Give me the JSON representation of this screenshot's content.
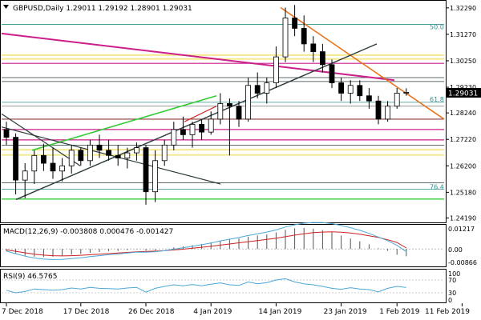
{
  "header": {
    "symbol": "GBPUSD,Daily",
    "ohlc": "1.29011 1.29192 1.28901 1.29031"
  },
  "price_panel": {
    "last_price": "1.29031",
    "fib_labels": [
      {
        "text": "50.0",
        "price": 1.314
      },
      {
        "text": "61.8",
        "price": 1.2862
      },
      {
        "text": "76.4",
        "price": 1.2523
      }
    ]
  },
  "macd_panel": {
    "label": "MACD(12,26,9) -0.003808 0.000476 -0.001427",
    "ticks": [
      "0.01217",
      "0.00",
      "-0.00866"
    ]
  },
  "rsi_panel": {
    "label": "RSI(9) 46.5765",
    "ticks": [
      "100",
      "70",
      "30",
      "0"
    ]
  },
  "colors": {
    "bull": "#ffffff",
    "bear": "#000000",
    "zone": "#f5e88f",
    "magenta": "#cc1f8a",
    "orange": "#e8731c",
    "green": "#33cc33",
    "darkline": "#2b3a3a",
    "brown": "#8b3a3a",
    "gray": "#888888",
    "teal": "#2f8f8f",
    "red": "#cc2222"
  },
  "chart_data": {
    "type": "candlestick",
    "title": "GBPUSD,Daily",
    "x_ticks": [
      "7 Dec 2018",
      "17 Dec 2018",
      "26 Dec 2018",
      "4 Jan 2019",
      "14 Jan 2019",
      "23 Jan 2019",
      "1 Feb 2019",
      "11 Feb 2019"
    ],
    "y_ticks": [
      1.3229,
      1.3127,
      1.3025,
      1.2923,
      1.2824,
      1.2722,
      1.262,
      1.2518,
      1.2419
    ],
    "ylim": [
      1.2405,
      1.325
    ],
    "candles": [
      [
        1.276,
        1.279,
        1.27,
        1.273
      ],
      [
        1.273,
        1.2745,
        1.251,
        1.2565
      ],
      [
        1.2565,
        1.263,
        1.2495,
        1.26
      ],
      [
        1.26,
        1.268,
        1.255,
        1.266
      ],
      [
        1.266,
        1.2705,
        1.26,
        1.263
      ],
      [
        1.263,
        1.269,
        1.257,
        1.26
      ],
      [
        1.26,
        1.265,
        1.256,
        1.262
      ],
      [
        1.262,
        1.27,
        1.259,
        1.268
      ],
      [
        1.268,
        1.269,
        1.262,
        1.264
      ],
      [
        1.264,
        1.272,
        1.262,
        1.27
      ],
      [
        1.27,
        1.274,
        1.265,
        1.268
      ],
      [
        1.268,
        1.272,
        1.264,
        1.266
      ],
      [
        1.266,
        1.27,
        1.262,
        1.265
      ],
      [
        1.265,
        1.269,
        1.261,
        1.267
      ],
      [
        1.267,
        1.271,
        1.264,
        1.269
      ],
      [
        1.269,
        1.27,
        1.247,
        1.252
      ],
      [
        1.252,
        1.268,
        1.248,
        1.264
      ],
      [
        1.264,
        1.272,
        1.262,
        1.27
      ],
      [
        1.27,
        1.279,
        1.268,
        1.276
      ],
      [
        1.276,
        1.281,
        1.272,
        1.274
      ],
      [
        1.274,
        1.279,
        1.269,
        1.278
      ],
      [
        1.278,
        1.28,
        1.272,
        1.275
      ],
      [
        1.275,
        1.283,
        1.274,
        1.28
      ],
      [
        1.28,
        1.29,
        1.278,
        1.286
      ],
      [
        1.286,
        1.288,
        1.266,
        1.285
      ],
      [
        1.285,
        1.287,
        1.277,
        1.28
      ],
      [
        1.28,
        1.296,
        1.279,
        1.293
      ],
      [
        1.293,
        1.298,
        1.288,
        1.29
      ],
      [
        1.29,
        1.296,
        1.286,
        1.294
      ],
      [
        1.294,
        1.308,
        1.292,
        1.304
      ],
      [
        1.304,
        1.323,
        1.302,
        1.319
      ],
      [
        1.319,
        1.324,
        1.312,
        1.315
      ],
      [
        1.315,
        1.32,
        1.306,
        1.309
      ],
      [
        1.309,
        1.312,
        1.302,
        1.306
      ],
      [
        1.306,
        1.309,
        1.298,
        1.301
      ],
      [
        1.301,
        1.303,
        1.292,
        1.294
      ],
      [
        1.294,
        1.296,
        1.287,
        1.29
      ],
      [
        1.29,
        1.295,
        1.286,
        1.293
      ],
      [
        1.293,
        1.295,
        1.287,
        1.289
      ],
      [
        1.289,
        1.292,
        1.284,
        1.287
      ],
      [
        1.287,
        1.289,
        1.278,
        1.28
      ],
      [
        1.28,
        1.287,
        1.279,
        1.285
      ],
      [
        1.285,
        1.292,
        1.284,
        1.29
      ],
      [
        1.29,
        1.2919,
        1.289,
        1.2903
      ]
    ],
    "macd": {
      "hist": [
        -0.0012,
        -0.0025,
        -0.0035,
        -0.004,
        -0.0042,
        -0.004,
        -0.0036,
        -0.003,
        -0.0026,
        -0.002,
        -0.0016,
        -0.0012,
        -0.001,
        -0.0006,
        -0.0002,
        -0.0008,
        -0.0006,
        0.0,
        0.0008,
        0.0014,
        0.002,
        0.0026,
        0.0034,
        0.0044,
        0.005,
        0.0055,
        0.0064,
        0.007,
        0.0076,
        0.0086,
        0.01,
        0.0108,
        0.011,
        0.0106,
        0.0098,
        0.0086,
        0.007,
        0.0055,
        0.004,
        0.0024,
        0.0004,
        -0.001,
        -0.003,
        -0.0038
      ],
      "signal": [
        -0.0005,
        -0.0012,
        -0.002,
        -0.0027,
        -0.0032,
        -0.0035,
        -0.0036,
        -0.0035,
        -0.0033,
        -0.003,
        -0.0027,
        -0.0024,
        -0.0021,
        -0.0018,
        -0.0015,
        -0.0013,
        -0.0011,
        -0.0009,
        -0.0005,
        -0.0001,
        0.0004,
        0.0009,
        0.0014,
        0.002,
        0.0026,
        0.0032,
        0.0038,
        0.0044,
        0.005,
        0.0056,
        0.0064,
        0.0072,
        0.0079,
        0.0085,
        0.0088,
        0.0089,
        0.0087,
        0.0083,
        0.0077,
        0.0069,
        0.006,
        0.0048,
        0.0034,
        0.0005
      ]
    },
    "rsi": [
      38,
      30,
      34,
      42,
      40,
      38,
      40,
      45,
      42,
      47,
      44,
      43,
      42,
      45,
      47,
      32,
      44,
      50,
      55,
      52,
      56,
      52,
      57,
      61,
      55,
      53,
      64,
      58,
      62,
      70,
      74,
      64,
      58,
      55,
      50,
      44,
      41,
      46,
      42,
      40,
      33,
      44,
      50,
      47
    ]
  }
}
